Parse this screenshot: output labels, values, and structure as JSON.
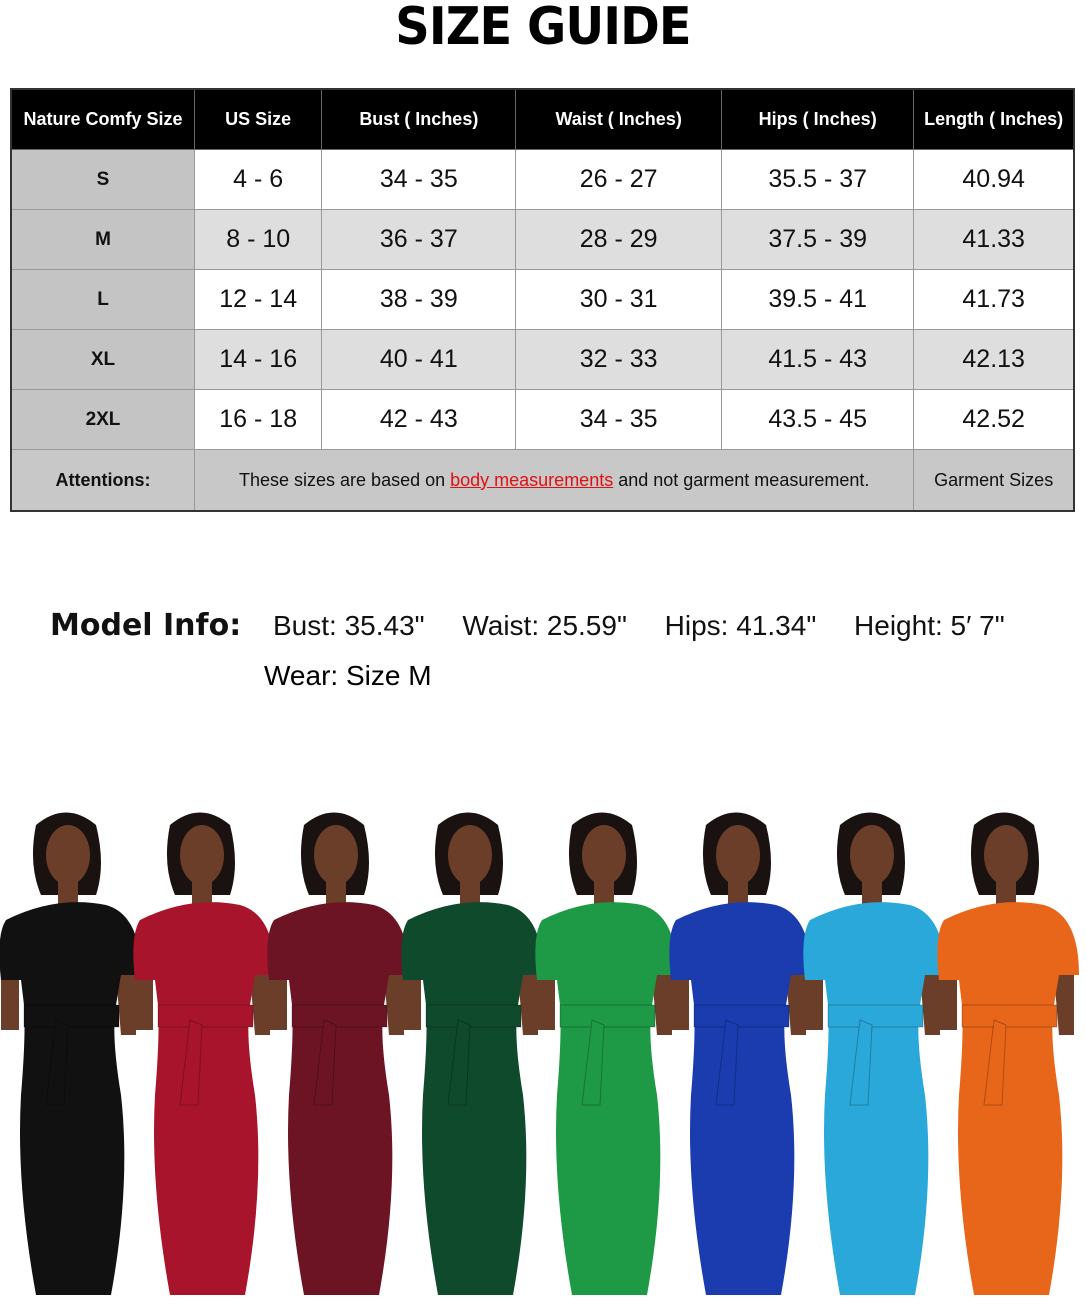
{
  "title": "SIZE GUIDE",
  "table": {
    "headers": [
      "Nature Comfy Size",
      "US Size",
      "Bust ( Inches)",
      "Waist ( Inches)",
      "Hips ( Inches)",
      "Length ( Inches)"
    ],
    "rows": [
      [
        "S",
        "4 - 6",
        "34 - 35",
        "26 - 27",
        "35.5 - 37",
        "40.94"
      ],
      [
        "M",
        "8 - 10",
        "36 - 37",
        "28 - 29",
        "37.5 - 39",
        "41.33"
      ],
      [
        "L",
        "12 - 14",
        "38 - 39",
        "30 - 31",
        "39.5 - 41",
        "41.73"
      ],
      [
        "XL",
        "14 - 16",
        "40 - 41",
        "32 - 33",
        "41.5 - 43",
        "42.13"
      ],
      [
        "2XL",
        "16 - 18",
        "42 - 43",
        "34 - 35",
        "43.5 - 45",
        "42.52"
      ]
    ],
    "attentions": {
      "label": "Attentions:",
      "text_before": "These sizes are based on ",
      "link": "body measurements",
      "text_after": " and not garment measurement.",
      "right": "Garment Sizes"
    }
  },
  "model_info": {
    "label": "Model Info:",
    "bust": "Bust: 35.43\"",
    "waist": "Waist: 25.59\"",
    "hips": "Hips: 41.34\"",
    "height": "Height: 5′ 7\"",
    "wear": "Wear: Size M"
  },
  "dress_colors": [
    "#111111",
    "#a8142c",
    "#6c1424",
    "#0f4a2c",
    "#1e9a46",
    "#1a3cae",
    "#2aa8da",
    "#e8661a"
  ]
}
